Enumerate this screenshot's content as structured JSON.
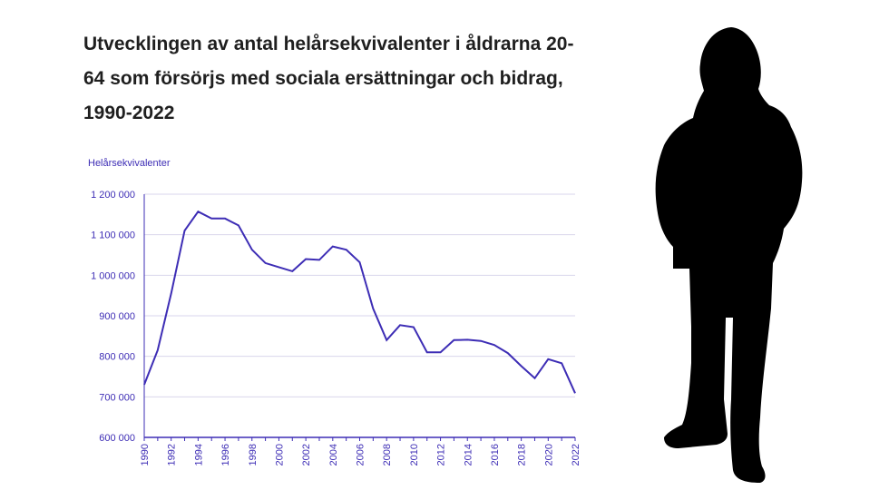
{
  "chart_data": {
    "type": "line",
    "title": "Utvecklingen av antal helårsekvivalenter i åldrarna 20-64 som försörjs med sociala ersättningar och bidrag, 1990-2022",
    "ylabel": "Helårsekvivalenter",
    "xlabel": "",
    "ylim": [
      600000,
      1200000
    ],
    "xlim": [
      1990,
      2022
    ],
    "y_ticks": [
      600000,
      700000,
      800000,
      900000,
      1000000,
      1100000,
      1200000
    ],
    "y_tick_labels": [
      "600 000",
      "700 000",
      "800 000",
      "900 000",
      "1 000 000",
      "1 100 000",
      "1 200 000"
    ],
    "x_tick_labels": [
      "1990",
      "1992",
      "1994",
      "1996",
      "1998",
      "2000",
      "2002",
      "2004",
      "2006",
      "2008",
      "2010",
      "2012",
      "2014",
      "2016",
      "2018",
      "2020",
      "2022"
    ],
    "grid": true,
    "line_color": "#3d2db5",
    "grid_color": "#d9d6ec",
    "x": [
      1990,
      1991,
      1992,
      1993,
      1994,
      1995,
      1996,
      1997,
      1998,
      1999,
      2000,
      2001,
      2002,
      2003,
      2004,
      2005,
      2006,
      2007,
      2008,
      2009,
      2010,
      2011,
      2012,
      2013,
      2014,
      2015,
      2016,
      2017,
      2018,
      2019,
      2020,
      2021,
      2022
    ],
    "values": [
      730000,
      815000,
      955000,
      1110000,
      1157000,
      1140000,
      1140000,
      1123000,
      1063000,
      1030000,
      1020000,
      1010000,
      1040000,
      1038000,
      1071000,
      1063000,
      1032000,
      918000,
      840000,
      877000,
      872000,
      810000,
      810000,
      840000,
      841000,
      838000,
      828000,
      808000,
      776000,
      746000,
      793000,
      783000,
      709000
    ]
  }
}
